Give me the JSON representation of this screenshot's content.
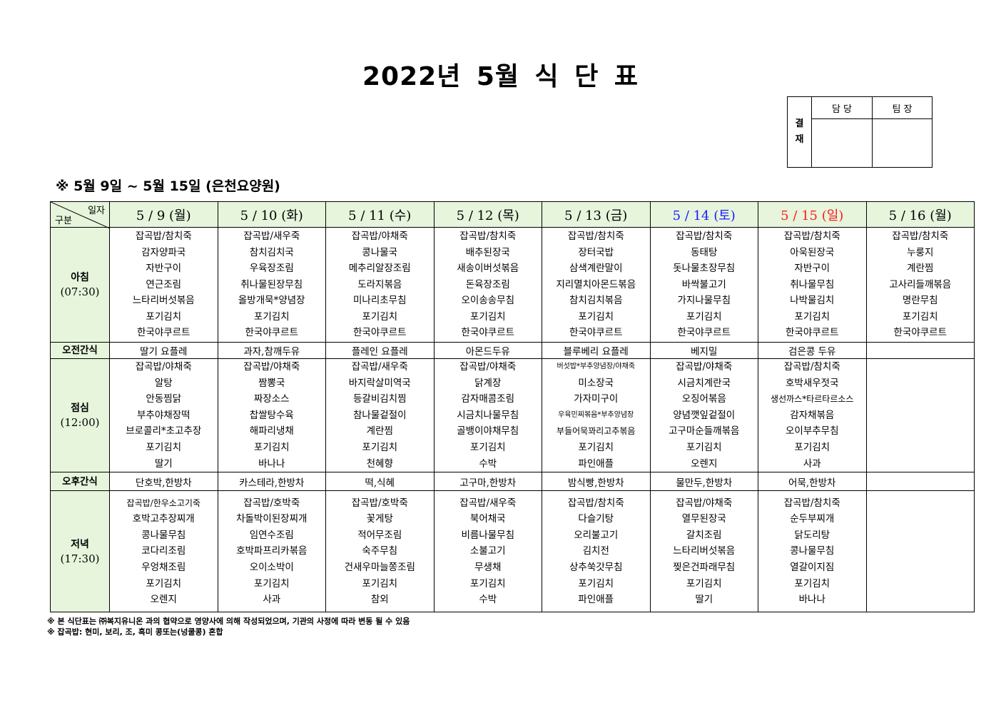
{
  "title": "2022년 5월 식 단 표",
  "approval": {
    "label": "결\n재",
    "label_chars": [
      "결",
      "재"
    ],
    "cols": [
      "담 당",
      "팀 장"
    ]
  },
  "subtitle": "※ 5월 9일 ~ 5월 15일 (은천요양원)",
  "table": {
    "corner_top": "일자",
    "corner_bottom": "구분",
    "days": [
      {
        "label": "5 / 9 (월)",
        "color": "#000000"
      },
      {
        "label": "5 / 10 (화)",
        "color": "#000000"
      },
      {
        "label": "5 / 11 (수)",
        "color": "#000000"
      },
      {
        "label": "5 / 12 (목)",
        "color": "#000000"
      },
      {
        "label": "5 / 13 (금)",
        "color": "#000000"
      },
      {
        "label": "5 / 14 (토)",
        "color": "#1a1aff"
      },
      {
        "label": "5 / 15 (일)",
        "color": "#ff1a1a"
      },
      {
        "label": "5 / 16 (월)",
        "color": "#000000"
      }
    ],
    "rows": [
      {
        "label": "아침",
        "time": "(07:30)",
        "type": "meal",
        "cells": [
          [
            "잡곡밥/참치죽",
            "감자양파국",
            "자반구이",
            "연근조림",
            "느타리버섯볶음",
            "포기김치",
            "한국야쿠르트"
          ],
          [
            "잡곡밥/새우죽",
            "참치김치국",
            "우육장조림",
            "취나물된장무침",
            "올방개묵*양념장",
            "포기김치",
            "한국야쿠르트"
          ],
          [
            "잡곡밥/야채죽",
            "콩나물국",
            "메추리알장조림",
            "도라지볶음",
            "미나리초무침",
            "포기김치",
            "한국야쿠르트"
          ],
          [
            "잡곡밥/참치죽",
            "배추된장국",
            "새송이버섯볶음",
            "돈육장조림",
            "오이송송무침",
            "포기김치",
            "한국야쿠르트"
          ],
          [
            "잡곡밥/참치죽",
            "장터국밥",
            "삼색계란말이",
            "지리멸치아몬드볶음",
            "참치김치볶음",
            "포기김치",
            "한국야쿠르트"
          ],
          [
            "잡곡밥/참치죽",
            "동태탕",
            "돗나물초장무침",
            "바싹불고기",
            "가지나물무침",
            "포기김치",
            "한국야쿠르트"
          ],
          [
            "잡곡밥/참치죽",
            "아욱된장국",
            "자반구이",
            "취나물무침",
            "나박물김치",
            "포기김치",
            "한국야쿠르트"
          ],
          [
            "잡곡밥/참치죽",
            "누룽지",
            "계란찜",
            "고사리들깨볶음",
            "명란무침",
            "포기김치",
            "한국야쿠르트"
          ]
        ]
      },
      {
        "label": "오전간식",
        "type": "snack",
        "cells": [
          "딸기 요플레",
          "과자,참깨두유",
          "플레인 요플레",
          "아몬드두유",
          "블루베리 요플레",
          "베지밀",
          "검은콩 두유",
          ""
        ]
      },
      {
        "label": "점심",
        "time": "(12:00)",
        "type": "meal",
        "cells": [
          [
            "잡곡밥/야채죽",
            "알탕",
            "안동찜닭",
            "부추야채장떡",
            "브로콜리*초고추장",
            "포기김치",
            "딸기"
          ],
          [
            "잡곡밥/야채죽",
            "짬뽕국",
            "짜장소스",
            "찹쌀탕수육",
            "해파리냉채",
            "포기김치",
            "바나나"
          ],
          [
            "잡곡밥/새우죽",
            "바지락살미역국",
            "등갈비김치찜",
            "참나물겉절이",
            "계란찜",
            "포기김치",
            "천혜향"
          ],
          [
            "잡곡밥/야채죽",
            "닭계장",
            "감자매콤조림",
            "시금치나물무침",
            "골뱅이야채무침",
            "포기김치",
            "수박"
          ],
          [
            "버섯밥*부추양념장/야채죽",
            "미소장국",
            "가자미구이",
            "우육민찌볶음*부추양념장",
            "부들어묵꽈리고추볶음",
            "포기김치",
            "파인애플"
          ],
          [
            "잡곡밥/야채죽",
            "시금치계란국",
            "오징어볶음",
            "양념깻잎겉절이",
            "고구마순들깨볶음",
            "포기김치",
            "오렌지"
          ],
          [
            "잡곡밥/참치죽",
            "호박새우젓국",
            "생선까스*타르타르소스",
            "감자채볶음",
            "오이부추무침",
            "포기김치",
            "사과"
          ],
          []
        ]
      },
      {
        "label": "오후간식",
        "type": "snack",
        "cells": [
          "단호박,한방차",
          "카스테라,한방차",
          "떡,식혜",
          "고구마,한방차",
          "밤식빵,한방차",
          "물만두,한방차",
          "어묵,한방차",
          ""
        ]
      },
      {
        "label": "저녁",
        "time": "(17:30)",
        "type": "meal",
        "cells": [
          [
            "잡곡밥/한우소고기죽",
            "호박고추장찌개",
            "콩나물무침",
            "코다리조림",
            "우엉채조림",
            "포기김치",
            "오렌지"
          ],
          [
            "잡곡밥/호박죽",
            "차돌박이된장찌개",
            "임연수조림",
            "호박파프리카볶음",
            "오이소박이",
            "포기김치",
            "사과"
          ],
          [
            "잡곡밥/호박죽",
            "꽃게탕",
            "적어무조림",
            "숙주무침",
            "건새우마늘쫑조림",
            "포기김치",
            "참외"
          ],
          [
            "잡곡밥/새우죽",
            "북어채국",
            "비름나물무침",
            "소불고기",
            "무생채",
            "포기김치",
            "수박"
          ],
          [
            "잡곡밥/참치죽",
            "다슬기탕",
            "오리불고기",
            "김치전",
            "상추쑥갓무침",
            "포기김치",
            "파인애플"
          ],
          [
            "잡곡밥/야채죽",
            "열무된장국",
            "갈치조림",
            "느타리버섯볶음",
            "찢은건파래무침",
            "포기김치",
            "딸기"
          ],
          [
            "잡곡밥/참치죽",
            "순두부찌개",
            "닭도리탕",
            "콩나물무침",
            "열갈이지짐",
            "포기김치",
            "바나나"
          ],
          []
        ]
      }
    ]
  },
  "notes": [
    "※ 본 식단표는 ㈜복지유니온 과의 협약으로 영양사에 의해 작성되었으며, 기관의 사정에 따라 변동 될 수 있음",
    "※ 잡곡밥: 현미, 보리, 조, 흑미 콩또는(넝쿨콩) 혼합"
  ],
  "colors": {
    "header_bg": "#e6f5dc",
    "saturday": "#1a1aff",
    "sunday": "#ff1a1a"
  }
}
